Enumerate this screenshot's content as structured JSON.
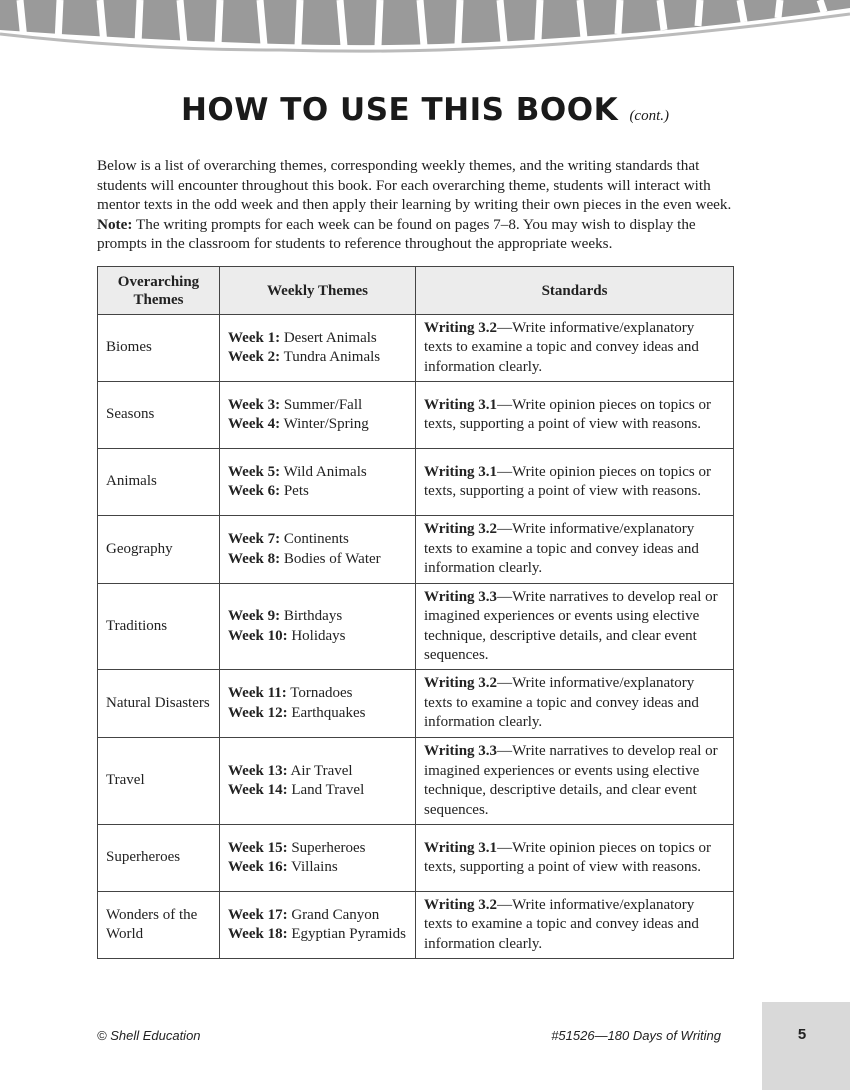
{
  "header": {
    "title": "HOW TO USE THIS BOOK",
    "title_note": "(cont.)"
  },
  "intro": {
    "text_before": "Below is a list of overarching themes, corresponding weekly themes, and the writing standards that students will encounter throughout this book.  For each overarching theme, students will interact with mentor texts in the odd week and then apply their learning by writing their own pieces in the even week. ",
    "note_label": "Note:",
    "text_after": " The writing prompts for each week can be found on pages 7–8.  You may wish to display the prompts in the classroom for students to reference throughout the appropriate weeks."
  },
  "table": {
    "headers": [
      "Overarching Themes",
      "Weekly Themes",
      "Standards"
    ],
    "rows": [
      {
        "theme": "Biomes",
        "weeks": [
          {
            "label": "Week 1:",
            "name": "Desert Animals"
          },
          {
            "label": "Week 2:",
            "name": "Tundra Animals"
          }
        ],
        "standard": {
          "label": "Writing 3.2",
          "text": "—Write informative/explanatory texts to examine a topic and convey ideas and information clearly."
        }
      },
      {
        "theme": "Seasons",
        "weeks": [
          {
            "label": "Week 3:",
            "name": "Summer/Fall"
          },
          {
            "label": "Week 4:",
            "name": "Winter/Spring"
          }
        ],
        "standard": {
          "label": "Writing 3.1",
          "text": "—Write opinion pieces on topics or texts, supporting a point of view with reasons."
        }
      },
      {
        "theme": "Animals",
        "weeks": [
          {
            "label": "Week 5:",
            "name": "Wild Animals"
          },
          {
            "label": "Week 6:",
            "name": "Pets"
          }
        ],
        "standard": {
          "label": "Writing 3.1",
          "text": "—Write opinion pieces on topics or texts, supporting a point of view with reasons."
        }
      },
      {
        "theme": "Geography",
        "weeks": [
          {
            "label": "Week 7:",
            "name": "Continents"
          },
          {
            "label": "Week 8:",
            "name": "Bodies of Water"
          }
        ],
        "standard": {
          "label": "Writing 3.2",
          "text": "—Write informative/explanatory texts to examine a topic and convey ideas and information clearly."
        }
      },
      {
        "theme": "Traditions",
        "weeks": [
          {
            "label": "Week 9:",
            "name": "Birthdays"
          },
          {
            "label": "Week 10:",
            "name": "Holidays"
          }
        ],
        "standard": {
          "label": "Writing 3.3",
          "text": "—Write narratives to develop real or imagined experiences or events using elective technique, descriptive details, and clear event sequences."
        }
      },
      {
        "theme": "Natural Disasters",
        "weeks": [
          {
            "label": "Week 11:",
            "name": "Tornadoes"
          },
          {
            "label": "Week 12:",
            "name": "Earthquakes"
          }
        ],
        "standard": {
          "label": "Writing 3.2",
          "text": "—Write informative/explanatory texts to examine a topic and convey ideas and information clearly."
        }
      },
      {
        "theme": "Travel",
        "weeks": [
          {
            "label": "Week 13:",
            "name": "Air Travel"
          },
          {
            "label": "Week 14:",
            "name": "Land Travel"
          }
        ],
        "standard": {
          "label": "Writing 3.3",
          "text": "—Write narratives to develop real or imagined experiences or events using elective technique, descriptive details, and clear event sequences."
        }
      },
      {
        "theme": "Superheroes",
        "weeks": [
          {
            "label": "Week 15:",
            "name": "Superheroes"
          },
          {
            "label": "Week 16:",
            "name": "Villains"
          }
        ],
        "standard": {
          "label": "Writing 3.1",
          "text": "—Write opinion pieces on topics or texts, supporting a point of view with reasons."
        }
      },
      {
        "theme": "Wonders of the World",
        "weeks": [
          {
            "label": "Week 17:",
            "name": "Grand Canyon"
          },
          {
            "label": "Week 18:",
            "name": "Egyptian Pyramids"
          }
        ],
        "standard": {
          "label": "Writing 3.2",
          "text": "—Write informative/explanatory texts to examine a topic and convey ideas and information clearly."
        }
      }
    ]
  },
  "footer": {
    "left": "© Shell Education",
    "right": "#51526—180 Days of Writing",
    "page": "5"
  }
}
